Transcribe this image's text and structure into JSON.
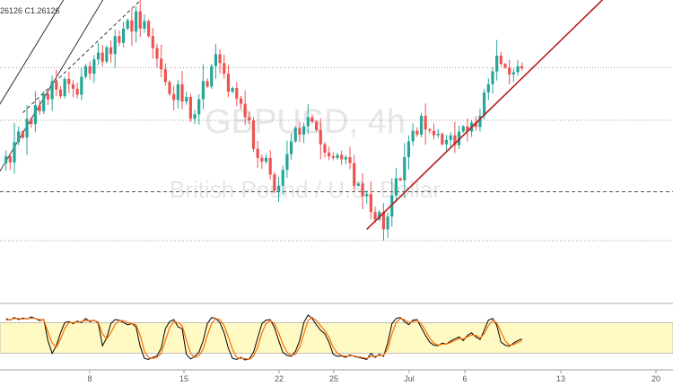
{
  "header": {
    "ohlc_text": "26126  C1.26126"
  },
  "watermark": {
    "symbol": "GBPUSD, 4h",
    "description": "British Pound / U.S. Dollar"
  },
  "colors": {
    "up": "#26a69a",
    "down": "#ef5350",
    "trendline": "#b71c1c",
    "channel": "#333333",
    "stoch_k": "#000000",
    "stoch_d": "#ff6d00",
    "stoch_band": "#fff9c4"
  },
  "chart_data": [
    {
      "type": "candlestick",
      "title": "",
      "x_ticks": [
        "8",
        "15",
        "22",
        "25",
        "Jul",
        "6",
        "13",
        "20"
      ],
      "x_range": [
        0,
        160
      ],
      "y_range": [
        1.242,
        1.282
      ],
      "grid": false,
      "levels": [
        {
          "value": 1.273,
          "style": "dotted"
        },
        {
          "value": 1.266,
          "style": "dotted"
        },
        {
          "value": 1.2565,
          "style": "dashed"
        },
        {
          "value": 1.25,
          "style": "dotted"
        }
      ],
      "close_series": [
        1.2603,
        1.2612,
        1.2604,
        1.2631,
        1.2645,
        1.2637,
        1.2662,
        1.2655,
        1.268,
        1.2672,
        1.2695,
        1.2688,
        1.2712,
        1.2701,
        1.2692,
        1.2715,
        1.2708,
        1.2702,
        1.2694,
        1.2718,
        1.2732,
        1.2722,
        1.2741,
        1.275,
        1.2738,
        1.2757,
        1.2748,
        1.2772,
        1.2763,
        1.2782,
        1.2793,
        1.2778,
        1.2805,
        1.2782,
        1.2792,
        1.2772,
        1.2756,
        1.2742,
        1.2728,
        1.2711,
        1.2695,
        1.2687,
        1.2708,
        1.2685,
        1.2691,
        1.2662,
        1.2668,
        1.2688,
        1.2712,
        1.2705,
        1.2732,
        1.2748,
        1.2736,
        1.2722,
        1.2698,
        1.2703,
        1.2689,
        1.2682,
        1.2664,
        1.266,
        1.2622,
        1.261,
        1.2605,
        1.261,
        1.2588,
        1.2566,
        1.2573,
        1.2594,
        1.2615,
        1.2632,
        1.265,
        1.2641,
        1.2652,
        1.2664,
        1.2658,
        1.2647,
        1.2628,
        1.2617,
        1.2612,
        1.261,
        1.2614,
        1.2608,
        1.2611,
        1.2603,
        1.2573,
        1.2576,
        1.2559,
        1.2562,
        1.2538,
        1.2528,
        1.2538,
        1.2515,
        1.2532,
        1.256,
        1.2583,
        1.258,
        1.2611,
        1.2632,
        1.2646,
        1.2641,
        1.2666,
        1.2648,
        1.2646,
        1.264,
        1.2642,
        1.2628,
        1.2634,
        1.264,
        1.2627,
        1.2645,
        1.2652,
        1.2645,
        1.2657,
        1.2651,
        1.2666,
        1.2697,
        1.2708,
        1.2725,
        1.2746,
        1.2735,
        1.273,
        1.2721,
        1.2724,
        1.2732,
        1.2729
      ],
      "trendline": {
        "from": [
          87,
          1.2515
        ],
        "to": [
          145,
          1.283
        ]
      },
      "channel": [
        {
          "from": [
            -5,
            1.255
          ],
          "to": [
            30,
            1.2875
          ]
        },
        {
          "from": [
            -5,
            1.264
          ],
          "to": [
            30,
            1.296
          ]
        },
        {
          "from": [
            5,
            1.267
          ],
          "to": [
            35,
            1.283
          ],
          "style": "dashed"
        }
      ]
    },
    {
      "type": "line",
      "title": "",
      "y_range": [
        0,
        100
      ],
      "band": [
        20,
        80
      ],
      "series": [
        {
          "values": [
            88,
            85,
            90,
            86,
            89,
            87,
            91,
            88,
            84,
            86,
            45,
            20,
            35,
            60,
            80,
            82,
            78,
            83,
            80,
            88,
            82,
            85,
            79,
            35,
            50,
            78,
            86,
            85,
            80,
            76,
            78,
            72,
            33,
            10,
            8,
            12,
            15,
            30,
            68,
            82,
            86,
            72,
            68,
            18,
            9,
            14,
            22,
            45,
            78,
            90,
            88,
            80,
            60,
            30,
            10,
            8,
            12,
            7,
            9,
            22,
            50,
            78,
            85,
            86,
            70,
            45,
            22,
            16,
            14,
            24,
            45,
            80,
            95,
            88,
            76,
            65,
            58,
            42,
            18,
            14,
            15,
            12,
            17,
            14,
            12,
            10,
            8,
            20,
            12,
            18,
            14,
            40,
            78,
            88,
            90,
            82,
            76,
            85,
            86,
            70,
            55,
            42,
            36,
            35,
            40,
            38,
            44,
            48,
            52,
            45,
            55,
            60,
            52,
            47,
            65,
            85,
            88,
            75,
            42,
            36,
            34,
            40,
            45,
            48
          ]
        },
        {
          "values": [
            85,
            86,
            88,
            88,
            87,
            88,
            89,
            88,
            86,
            85,
            62,
            40,
            32,
            48,
            68,
            80,
            80,
            81,
            82,
            84,
            84,
            84,
            81,
            58,
            48,
            60,
            76,
            84,
            84,
            80,
            78,
            76,
            55,
            24,
            12,
            10,
            12,
            20,
            45,
            70,
            82,
            80,
            74,
            46,
            20,
            12,
            15,
            28,
            55,
            78,
            88,
            86,
            74,
            52,
            28,
            12,
            10,
            10,
            8,
            14,
            32,
            60,
            78,
            84,
            78,
            60,
            38,
            22,
            16,
            18,
            32,
            58,
            84,
            90,
            84,
            74,
            64,
            52,
            32,
            20,
            16,
            14,
            15,
            15,
            13,
            12,
            10,
            14,
            14,
            16,
            16,
            28,
            58,
            80,
            88,
            86,
            80,
            82,
            84,
            78,
            64,
            50,
            40,
            36,
            38,
            38,
            41,
            45,
            49,
            48,
            52,
            56,
            55,
            50,
            58,
            74,
            84,
            80,
            62,
            44,
            36,
            37,
            41,
            45
          ]
        }
      ]
    }
  ]
}
